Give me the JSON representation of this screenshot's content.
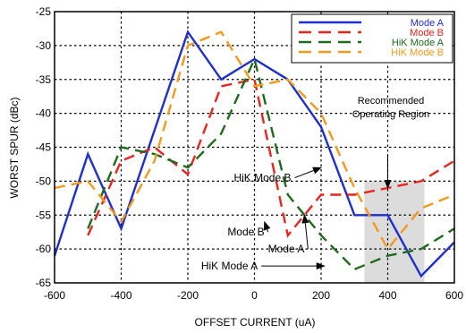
{
  "chart_data": {
    "type": "line",
    "xlabel": "OFFSET CURRENT (uA)",
    "ylabel": "WORST SPUR (dBc)",
    "xlim": [
      -600,
      600
    ],
    "ylim": [
      -65,
      -25
    ],
    "x_ticks": [
      -600,
      -400,
      -200,
      0,
      200,
      400,
      600
    ],
    "y_ticks": [
      -25,
      -30,
      -35,
      -40,
      -45,
      -50,
      -55,
      -60,
      -65
    ],
    "grid": true,
    "legend_position": "top-right",
    "highlight_region": {
      "label_lines": [
        "Recommended",
        "Operating Region"
      ],
      "x_range": [
        330,
        510
      ],
      "y_range": [
        -65,
        -50
      ]
    },
    "series": [
      {
        "name": "Mode A",
        "color": "#1f2fcc",
        "style": "solid",
        "x": [
          -600,
          -500,
          -400,
          -200,
          -100,
          0,
          100,
          200,
          300,
          400,
          500,
          600
        ],
        "y": [
          -61,
          -46,
          -57,
          -28,
          -35,
          -32,
          -35,
          -42,
          -55,
          -55,
          -64,
          -59
        ]
      },
      {
        "name": "Mode B",
        "color": "#e8251f",
        "style": "dashed",
        "x": [
          -500,
          -400,
          -300,
          -200,
          -100,
          0,
          100,
          200,
          300,
          400,
          500,
          600
        ],
        "y": [
          -58,
          -47,
          -45,
          -49,
          -36,
          -35,
          -58,
          -52,
          -52,
          -51,
          -50,
          -47
        ]
      },
      {
        "name": "HiK Mode A",
        "color": "#1e6b1e",
        "style": "dashed",
        "x": [
          -500,
          -400,
          -300,
          -200,
          -100,
          0,
          100,
          200,
          300,
          400,
          500,
          600
        ],
        "y": [
          -57,
          -45,
          -46,
          -48,
          -43,
          -32,
          -52,
          -58,
          -63,
          -61,
          -60,
          -57
        ]
      },
      {
        "name": "HiK Mode B",
        "color": "#f39a1e",
        "style": "dashed",
        "x": [
          -600,
          -500,
          -400,
          -300,
          -200,
          -100,
          0,
          100,
          200,
          300,
          400,
          500,
          600
        ],
        "y": [
          -51,
          -50,
          -56,
          -47,
          -30,
          -28,
          -36,
          -35,
          -40,
          -51,
          -60,
          -54,
          -52
        ]
      }
    ],
    "annotations": [
      {
        "text": "HiK Mode B",
        "x": 110,
        "y": -49.5,
        "target_x": 200,
        "target_y": -48
      },
      {
        "text": "Mode B",
        "x": 30,
        "y": -57.5,
        "target_x": 30,
        "target_y": -56
      },
      {
        "text": "Mode A",
        "x": 150,
        "y": -60,
        "target_x": 150,
        "target_y": -55
      },
      {
        "text": "HiK Mode A",
        "x": 10,
        "y": -62.5,
        "target_x": 210,
        "target_y": -62.5
      },
      {
        "text": "",
        "x": 400,
        "y": -46,
        "target_x": 400,
        "target_y": -51
      }
    ]
  }
}
